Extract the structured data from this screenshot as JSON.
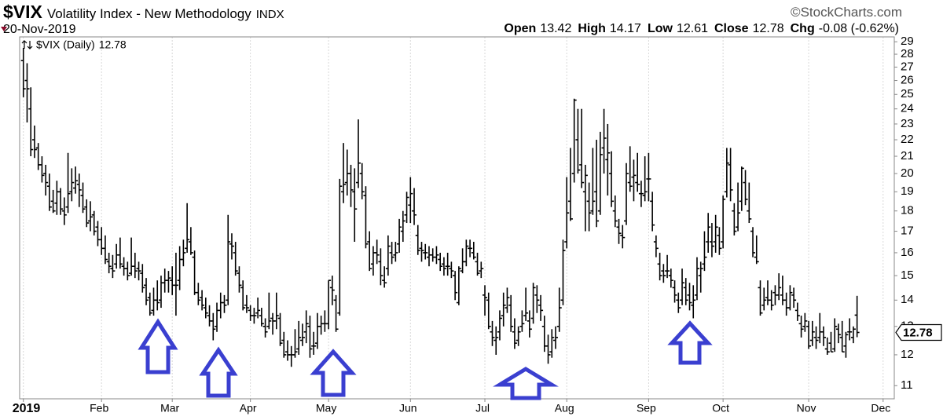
{
  "chart_data": {
    "type": "ohlc",
    "symbol": "$VIX",
    "title": "Volatility Index - New Methodology",
    "exchange": "INDX",
    "source": "©StockCharts.com",
    "date": "20-Nov-2019",
    "quote": [
      {
        "label": "Open",
        "value": 13.42
      },
      {
        "label": "High",
        "value": 14.17
      },
      {
        "label": "Low",
        "value": 12.61
      },
      {
        "label": "Close",
        "value": 12.78
      },
      {
        "label": "Chg",
        "value": "-0.08 (-0.62%)"
      }
    ],
    "series_name": "$VIX (Daily)",
    "color": "#000000",
    "log_scale": true,
    "grid": "x",
    "xlim": [
      -1,
      234
    ],
    "ylim": [
      10.6,
      29.4
    ],
    "xticks": [
      {
        "value": 0,
        "label": "2019"
      },
      {
        "value": 21,
        "label": "Feb"
      },
      {
        "value": 40,
        "label": "Mar"
      },
      {
        "value": 61,
        "label": "Apr"
      },
      {
        "value": 82,
        "label": "May"
      },
      {
        "value": 104,
        "label": "Jun"
      },
      {
        "value": 124,
        "label": "Jul"
      },
      {
        "value": 146,
        "label": "Aug"
      },
      {
        "value": 168,
        "label": "Sep"
      },
      {
        "value": 188,
        "label": "Oct"
      },
      {
        "value": 211,
        "label": "Nov"
      },
      {
        "value": 231,
        "label": "Dec"
      }
    ],
    "yticks": [
      11,
      12,
      13,
      14,
      15,
      16,
      17,
      18,
      19,
      20,
      21,
      22,
      23,
      24,
      25,
      26,
      27,
      28,
      29
    ],
    "ohlc": [
      [
        27.5,
        28.5,
        24.8,
        25.4
      ],
      [
        26.0,
        27.3,
        23.1,
        25.4
      ],
      [
        24.0,
        25.5,
        21.0,
        21.4
      ],
      [
        22.0,
        22.9,
        20.9,
        21.4
      ],
      [
        21.5,
        21.8,
        20.2,
        20.5
      ],
      [
        20.5,
        21.0,
        19.5,
        19.9
      ],
      [
        20.0,
        20.5,
        18.8,
        19.5
      ],
      [
        19.3,
        20.0,
        18.0,
        18.2
      ],
      [
        18.5,
        19.1,
        17.9,
        18.0
      ],
      [
        18.4,
        19.6,
        17.8,
        19.0
      ],
      [
        19.0,
        19.2,
        17.8,
        18.1
      ],
      [
        18.0,
        18.7,
        17.3,
        17.8
      ],
      [
        18.2,
        21.2,
        17.9,
        18.9
      ],
      [
        19.0,
        20.3,
        18.5,
        19.5
      ],
      [
        19.2,
        20.4,
        18.9,
        19.6
      ],
      [
        19.4,
        20.0,
        18.2,
        19.1
      ],
      [
        18.8,
        19.5,
        17.9,
        18.1
      ],
      [
        18.2,
        18.6,
        17.2,
        17.4
      ],
      [
        17.5,
        18.5,
        17.0,
        17.7
      ],
      [
        17.8,
        18.0,
        16.8,
        17.0
      ],
      [
        17.2,
        17.5,
        16.3,
        16.6
      ],
      [
        16.6,
        17.2,
        15.9,
        16.2
      ],
      [
        16.2,
        16.8,
        15.5,
        15.7
      ],
      [
        15.6,
        16.0,
        15.1,
        15.4
      ],
      [
        15.3,
        15.9,
        14.9,
        15.2
      ],
      [
        15.5,
        16.4,
        15.3,
        15.9
      ],
      [
        15.9,
        16.7,
        15.3,
        15.5
      ],
      [
        15.4,
        15.8,
        15.0,
        15.3
      ],
      [
        15.3,
        15.6,
        14.8,
        15.0
      ],
      [
        15.1,
        16.7,
        15.0,
        15.4
      ],
      [
        15.4,
        16.0,
        14.9,
        15.2
      ],
      [
        15.3,
        15.6,
        14.8,
        15.2
      ],
      [
        15.1,
        15.5,
        14.3,
        14.5
      ],
      [
        14.6,
        14.9,
        13.8,
        14.0
      ],
      [
        14.1,
        14.3,
        13.4,
        13.5
      ],
      [
        13.6,
        14.5,
        13.4,
        14.0
      ],
      [
        14.0,
        14.8,
        13.6,
        13.9
      ],
      [
        14.0,
        15.0,
        13.7,
        14.7
      ],
      [
        14.7,
        15.3,
        14.3,
        14.8
      ],
      [
        14.8,
        15.2,
        14.3,
        14.9
      ],
      [
        14.8,
        15.4,
        14.2,
        14.6
      ],
      [
        14.6,
        16.0,
        13.4,
        14.6
      ],
      [
        14.8,
        16.3,
        14.4,
        15.7
      ],
      [
        15.7,
        16.6,
        15.4,
        16.0
      ],
      [
        16.2,
        18.4,
        16.0,
        16.6
      ],
      [
        16.5,
        17.2,
        15.9,
        16.0
      ],
      [
        15.8,
        16.1,
        14.2,
        14.3
      ],
      [
        14.3,
        14.7,
        13.8,
        14.0
      ],
      [
        14.1,
        14.4,
        13.6,
        13.8
      ],
      [
        13.7,
        14.1,
        13.3,
        13.5
      ],
      [
        13.4,
        13.8,
        13.0,
        13.2
      ],
      [
        13.2,
        13.5,
        12.5,
        12.9
      ],
      [
        13.0,
        13.9,
        12.8,
        13.6
      ],
      [
        13.6,
        14.3,
        13.3,
        13.9
      ],
      [
        13.9,
        14.2,
        13.5,
        13.8
      ],
      [
        14.0,
        17.8,
        13.8,
        16.5
      ],
      [
        16.4,
        16.9,
        15.7,
        16.3
      ],
      [
        16.0,
        16.5,
        15.0,
        15.2
      ],
      [
        15.1,
        15.4,
        14.3,
        14.6
      ],
      [
        14.5,
        14.8,
        13.6,
        13.7
      ],
      [
        13.8,
        14.2,
        13.5,
        13.7
      ],
      [
        13.6,
        13.8,
        13.2,
        13.4
      ],
      [
        13.4,
        13.7,
        13.1,
        13.4
      ],
      [
        13.5,
        14.1,
        13.3,
        13.6
      ],
      [
        13.4,
        13.7,
        13.0,
        13.1
      ],
      [
        13.0,
        13.3,
        12.6,
        12.8
      ],
      [
        13.0,
        14.3,
        12.9,
        13.2
      ],
      [
        13.3,
        13.5,
        12.7,
        13.2
      ],
      [
        13.2,
        14.3,
        12.9,
        13.4
      ],
      [
        13.3,
        13.5,
        12.3,
        12.4
      ],
      [
        12.5,
        12.8,
        11.9,
        12.0
      ],
      [
        12.1,
        12.5,
        11.8,
        12.0
      ],
      [
        12.0,
        12.3,
        11.6,
        12.0
      ],
      [
        12.0,
        12.9,
        11.9,
        12.1
      ],
      [
        12.2,
        13.2,
        12.0,
        12.6
      ],
      [
        12.5,
        13.1,
        12.3,
        12.6
      ],
      [
        12.8,
        13.6,
        12.4,
        13.1
      ],
      [
        13.0,
        13.4,
        11.9,
        12.2
      ],
      [
        12.3,
        12.8,
        12.0,
        12.3
      ],
      [
        12.4,
        13.5,
        12.2,
        13.0
      ],
      [
        13.0,
        13.4,
        12.7,
        13.1
      ],
      [
        13.1,
        13.6,
        12.8,
        13.1
      ],
      [
        13.1,
        14.8,
        12.9,
        14.8
      ],
      [
        14.5,
        15.0,
        13.8,
        14.4
      ],
      [
        14.0,
        14.2,
        12.8,
        12.9
      ],
      [
        13.5,
        19.7,
        13.4,
        19.3
      ],
      [
        19.0,
        21.8,
        18.4,
        19.4
      ],
      [
        19.5,
        21.4,
        18.8,
        20.0
      ],
      [
        20.0,
        20.5,
        18.2,
        19.1
      ],
      [
        19.0,
        20.3,
        16.5,
        18.1
      ],
      [
        19.5,
        23.3,
        19.2,
        20.6
      ],
      [
        20.0,
        20.6,
        18.6,
        19.0
      ],
      [
        18.8,
        19.3,
        16.2,
        16.4
      ],
      [
        16.5,
        17.0,
        15.2,
        15.3
      ],
      [
        15.5,
        16.3,
        15.0,
        16.0
      ],
      [
        16.0,
        16.6,
        15.5,
        15.9
      ],
      [
        15.6,
        16.2,
        14.6,
        15.0
      ],
      [
        14.8,
        15.4,
        14.5,
        14.7
      ],
      [
        15.3,
        16.8,
        15.0,
        16.3
      ],
      [
        16.0,
        16.5,
        15.5,
        15.8
      ],
      [
        15.9,
        16.5,
        15.6,
        16.0
      ],
      [
        16.4,
        17.6,
        16.0,
        17.2
      ],
      [
        17.0,
        18.0,
        16.5,
        17.5
      ],
      [
        17.8,
        19.0,
        17.4,
        18.7
      ],
      [
        18.3,
        19.8,
        17.4,
        18.9
      ],
      [
        18.0,
        19.2,
        17.3,
        17.8
      ],
      [
        16.8,
        17.3,
        15.9,
        16.1
      ],
      [
        16.2,
        16.5,
        15.6,
        16.1
      ],
      [
        16.0,
        16.4,
        15.7,
        16.0
      ],
      [
        15.8,
        16.3,
        15.4,
        15.9
      ],
      [
        15.9,
        16.2,
        15.6,
        15.8
      ],
      [
        15.8,
        16.3,
        15.5,
        15.9
      ],
      [
        15.7,
        16.0,
        15.2,
        15.4
      ],
      [
        15.5,
        15.8,
        15.0,
        15.3
      ],
      [
        15.4,
        16.0,
        15.0,
        15.4
      ],
      [
        15.3,
        15.6,
        14.9,
        15.2
      ],
      [
        15.0,
        15.2,
        14.0,
        14.3
      ],
      [
        13.9,
        15.4,
        13.8,
        15.3
      ],
      [
        15.2,
        16.2,
        15.1,
        15.6
      ],
      [
        15.6,
        16.6,
        15.4,
        16.3
      ],
      [
        16.2,
        16.6,
        15.8,
        16.2
      ],
      [
        16.0,
        16.5,
        15.7,
        15.8
      ],
      [
        15.6,
        16.0,
        15.0,
        15.1
      ],
      [
        15.2,
        15.6,
        14.9,
        15.3
      ],
      [
        14.2,
        14.6,
        13.4,
        14.1
      ],
      [
        14.0,
        14.3,
        12.9,
        13.0
      ],
      [
        12.8,
        13.2,
        12.3,
        12.6
      ],
      [
        12.5,
        13.0,
        12.0,
        12.6
      ],
      [
        12.8,
        13.6,
        12.5,
        13.3
      ],
      [
        13.4,
        14.3,
        13.0,
        13.8
      ],
      [
        13.7,
        14.5,
        13.5,
        14.1
      ],
      [
        13.8,
        14.2,
        12.8,
        13.0
      ],
      [
        12.8,
        13.3,
        12.2,
        12.4
      ],
      [
        12.5,
        13.0,
        12.3,
        12.8
      ],
      [
        13.0,
        13.6,
        12.8,
        13.1
      ],
      [
        13.4,
        14.5,
        13.2,
        13.5
      ],
      [
        13.2,
        13.6,
        12.6,
        12.9
      ],
      [
        13.3,
        14.7,
        13.1,
        14.5
      ],
      [
        14.2,
        14.6,
        13.5,
        14.0
      ],
      [
        13.8,
        14.2,
        13.2,
        13.6
      ],
      [
        13.0,
        13.4,
        12.1,
        12.3
      ],
      [
        12.3,
        12.7,
        11.7,
        12.0
      ],
      [
        12.1,
        12.9,
        11.9,
        12.6
      ],
      [
        12.5,
        13.0,
        12.2,
        12.6
      ],
      [
        13.0,
        14.5,
        12.8,
        13.7
      ],
      [
        14.0,
        16.6,
        13.8,
        16.1
      ],
      [
        16.5,
        19.8,
        16.2,
        17.9
      ],
      [
        18.5,
        21.5,
        17.5,
        17.6
      ],
      [
        20.0,
        24.7,
        19.5,
        24.6
      ],
      [
        22.0,
        24.0,
        20.0,
        20.2
      ],
      [
        20.5,
        24.0,
        19.2,
        19.5
      ],
      [
        19.0,
        20.5,
        17.0,
        19.9
      ],
      [
        18.5,
        19.5,
        17.0,
        17.9
      ],
      [
        18.0,
        21.5,
        17.8,
        18.5
      ],
      [
        19.0,
        22.0,
        17.2,
        17.5
      ],
      [
        18.0,
        22.5,
        17.8,
        21.1
      ],
      [
        21.5,
        24.0,
        20.0,
        22.1
      ],
      [
        20.8,
        23.0,
        18.8,
        21.2
      ],
      [
        20.0,
        21.3,
        18.2,
        18.5
      ],
      [
        18.0,
        18.8,
        17.2,
        17.5
      ],
      [
        17.2,
        17.6,
        16.4,
        16.9
      ],
      [
        16.8,
        17.3,
        16.2,
        16.7
      ],
      [
        17.5,
        20.6,
        17.3,
        20.0
      ],
      [
        19.5,
        21.6,
        19.0,
        19.3
      ],
      [
        19.8,
        20.8,
        18.5,
        19.9
      ],
      [
        19.5,
        21.2,
        19.0,
        19.4
      ],
      [
        18.9,
        19.6,
        18.2,
        18.9
      ],
      [
        18.8,
        21.0,
        18.5,
        19.0
      ],
      [
        19.7,
        21.2,
        18.5,
        19.7
      ],
      [
        18.5,
        19.0,
        17.0,
        17.3
      ],
      [
        16.5,
        16.8,
        15.8,
        16.2
      ],
      [
        15.5,
        16.0,
        14.8,
        15.0
      ],
      [
        15.2,
        15.5,
        14.7,
        15.0
      ],
      [
        15.2,
        15.9,
        14.9,
        15.2
      ],
      [
        15.0,
        15.3,
        14.5,
        14.8
      ],
      [
        14.5,
        14.8,
        13.9,
        14.2
      ],
      [
        14.0,
        14.3,
        13.5,
        13.7
      ],
      [
        14.0,
        15.3,
        13.8,
        14.7
      ],
      [
        14.5,
        14.9,
        13.8,
        14.0
      ],
      [
        14.2,
        14.7,
        13.6,
        13.9
      ],
      [
        13.8,
        14.6,
        13.3,
        14.0
      ],
      [
        14.2,
        15.8,
        14.0,
        15.3
      ],
      [
        15.0,
        15.6,
        14.3,
        15.3
      ],
      [
        15.5,
        17.0,
        15.2,
        15.8
      ],
      [
        16.5,
        17.9,
        16.0,
        17.2
      ],
      [
        16.5,
        17.4,
        15.8,
        16.3
      ],
      [
        16.5,
        17.8,
        16.0,
        17.2
      ],
      [
        16.8,
        17.2,
        15.9,
        16.2
      ],
      [
        16.5,
        18.8,
        16.2,
        18.6
      ],
      [
        19.0,
        21.5,
        18.7,
        20.6
      ],
      [
        20.5,
        21.5,
        18.5,
        19.1
      ],
      [
        18.0,
        18.4,
        16.8,
        17.0
      ],
      [
        17.2,
        19.5,
        17.0,
        17.9
      ],
      [
        18.5,
        20.4,
        18.0,
        20.3
      ],
      [
        19.5,
        20.2,
        18.3,
        18.6
      ],
      [
        18.0,
        19.5,
        17.4,
        17.6
      ],
      [
        17.0,
        17.2,
        15.8,
        16.0
      ],
      [
        15.8,
        16.8,
        15.5,
        15.6
      ],
      [
        14.5,
        14.8,
        13.4,
        13.5
      ],
      [
        13.8,
        14.5,
        13.6,
        14.0
      ],
      [
        14.1,
        14.8,
        13.8,
        14.0
      ],
      [
        14.0,
        14.4,
        13.6,
        13.8
      ],
      [
        14.3,
        14.6,
        13.8,
        14.2
      ],
      [
        14.2,
        15.1,
        14.0,
        14.5
      ],
      [
        14.2,
        15.0,
        13.8,
        14.0
      ],
      [
        14.0,
        14.3,
        13.4,
        13.7
      ],
      [
        13.7,
        14.6,
        13.6,
        14.3
      ],
      [
        14.2,
        14.5,
        13.7,
        14.0
      ],
      [
        13.6,
        13.9,
        13.2,
        13.4
      ],
      [
        13.1,
        13.4,
        12.6,
        12.9
      ],
      [
        13.0,
        13.5,
        12.8,
        13.2
      ],
      [
        13.0,
        13.2,
        12.2,
        12.3
      ],
      [
        12.5,
        13.2,
        12.3,
        12.8
      ],
      [
        12.6,
        13.0,
        12.2,
        12.5
      ],
      [
        12.6,
        13.5,
        12.4,
        12.8
      ],
      [
        12.8,
        13.0,
        12.3,
        12.6
      ],
      [
        12.2,
        12.6,
        12.0,
        12.1
      ],
      [
        12.4,
        12.8,
        12.1,
        12.1
      ],
      [
        12.2,
        13.3,
        12.1,
        13.0
      ],
      [
        12.9,
        13.1,
        12.4,
        12.7
      ],
      [
        12.6,
        13.2,
        12.1,
        12.1
      ],
      [
        12.3,
        12.8,
        11.9,
        12.7
      ],
      [
        12.8,
        13.3,
        12.5,
        12.8
      ],
      [
        12.6,
        13.0,
        12.4,
        12.9
      ],
      [
        13.42,
        14.17,
        12.61,
        12.78
      ]
    ]
  }
}
